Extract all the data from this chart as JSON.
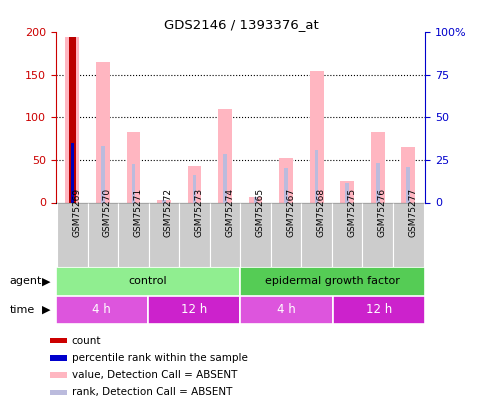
{
  "title": "GDS2146 / 1393376_at",
  "samples": [
    "GSM75269",
    "GSM75270",
    "GSM75271",
    "GSM75272",
    "GSM75273",
    "GSM75274",
    "GSM75265",
    "GSM75267",
    "GSM75268",
    "GSM75275",
    "GSM75276",
    "GSM75277"
  ],
  "pink_bars": [
    195,
    165,
    83,
    3,
    43,
    110,
    7,
    52,
    155,
    25,
    83,
    65
  ],
  "blue_bars": [
    70,
    67,
    45,
    3,
    32,
    57,
    7,
    40,
    62,
    23,
    47,
    42
  ],
  "red_bar_index": 0,
  "red_bar_value": 195,
  "blue_bar_index": 0,
  "blue_bar_value": 70,
  "ylim_left": [
    0,
    200
  ],
  "ylim_right": [
    0,
    100
  ],
  "yticks_left": [
    0,
    50,
    100,
    150,
    200
  ],
  "yticks_right": [
    0,
    25,
    50,
    75,
    100
  ],
  "ytick_labels_right": [
    "0",
    "25",
    "50",
    "75",
    "100%"
  ],
  "agent_groups": [
    {
      "label": "control",
      "start": 0,
      "end": 6,
      "color": "#90EE90"
    },
    {
      "label": "epidermal growth factor",
      "start": 6,
      "end": 12,
      "color": "#55CC55"
    }
  ],
  "time_groups": [
    {
      "label": "4 h",
      "start": 0,
      "end": 3,
      "color": "#DD55DD"
    },
    {
      "label": "12 h",
      "start": 3,
      "end": 6,
      "color": "#CC22CC"
    },
    {
      "label": "4 h",
      "start": 6,
      "end": 9,
      "color": "#DD55DD"
    },
    {
      "label": "12 h",
      "start": 9,
      "end": 12,
      "color": "#CC22CC"
    }
  ],
  "legend_items": [
    {
      "color": "#CC0000",
      "label": "count"
    },
    {
      "color": "#0000CC",
      "label": "percentile rank within the sample"
    },
    {
      "color": "#FFB6C1",
      "label": "value, Detection Call = ABSENT"
    },
    {
      "color": "#BBBBDD",
      "label": "rank, Detection Call = ABSENT"
    }
  ],
  "bar_color_pink": "#FFB6C1",
  "bar_color_blue": "#BBBBDD",
  "bar_color_red": "#BB0000",
  "bar_color_bluedot": "#0000BB",
  "axis_left_color": "#CC0000",
  "axis_right_color": "#0000CC",
  "grid_color": "#000000",
  "bg_color": "#FFFFFF",
  "plot_bg": "#FFFFFF",
  "label_bg": "#CCCCCC",
  "n_samples": 12
}
